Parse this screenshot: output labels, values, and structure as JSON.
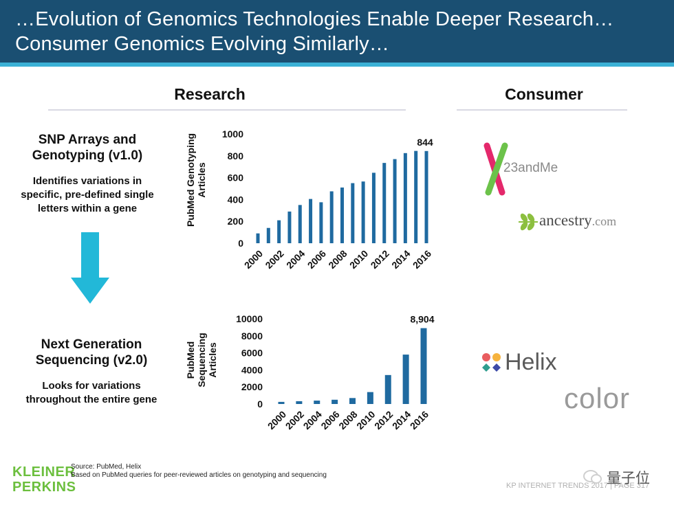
{
  "header": {
    "line1": "…Evolution of Genomics Technologies Enable Deeper Research…",
    "line2": "Consumer Genomics Evolving Similarly…"
  },
  "columns": {
    "research": "Research",
    "consumer": "Consumer"
  },
  "v1": {
    "title": "SNP Arrays and Genotyping (v1.0)",
    "desc": "Identifies variations in specific, pre-defined single letters within a gene"
  },
  "v2": {
    "title": "Next Generation Sequencing (v2.0)",
    "desc": "Looks for variations throughout the entire gene"
  },
  "logos": {
    "twentythree": "23andMe",
    "ancestry": "ancestry",
    "ancestry_suffix": ".com",
    "helix": "Helix",
    "color": "color"
  },
  "footer": {
    "source": "Source: PubMed, Helix",
    "note": "Based on PubMed queries for peer-reviewed articles on genotyping and sequencing",
    "kp1": "KLEINER",
    "kp2": "PERKINS",
    "right": "KP INTERNET TRENDS 2017  |  PAGE 317",
    "watermark": "量子位"
  },
  "colors": {
    "header": "#1a4f72",
    "accent": "#3bb1d6",
    "bar": "#1f6aa0",
    "kp": "#6cbf3e"
  },
  "chart_data": [
    {
      "type": "bar",
      "ylabel": "PubMed Genotyping Articles",
      "x": [
        2000,
        2001,
        2002,
        2003,
        2004,
        2005,
        2006,
        2007,
        2008,
        2009,
        2010,
        2011,
        2012,
        2013,
        2014,
        2015,
        2016
      ],
      "values": [
        90,
        140,
        210,
        290,
        350,
        405,
        375,
        475,
        510,
        550,
        565,
        645,
        735,
        770,
        825,
        845,
        844
      ],
      "xticks": [
        "2000",
        "2002",
        "2004",
        "2006",
        "2008",
        "2010",
        "2012",
        "2014",
        "2016"
      ],
      "yticks": [
        "0",
        "200",
        "400",
        "600",
        "800",
        "1000"
      ],
      "ylim": [
        0,
        1000
      ],
      "annotation": "844"
    },
    {
      "type": "bar",
      "ylabel": "PubMed Sequencing Articles",
      "x": [
        2000,
        2002,
        2004,
        2006,
        2008,
        2010,
        2012,
        2014,
        2016
      ],
      "values": [
        250,
        330,
        400,
        500,
        700,
        1400,
        3400,
        5800,
        8904
      ],
      "xticks": [
        "2000",
        "2002",
        "2004",
        "2006",
        "2008",
        "2010",
        "2012",
        "2014",
        "2016"
      ],
      "yticks": [
        "0",
        "2000",
        "4000",
        "6000",
        "8000",
        "10000"
      ],
      "ylim": [
        0,
        10000
      ],
      "annotation": "8,904"
    }
  ]
}
